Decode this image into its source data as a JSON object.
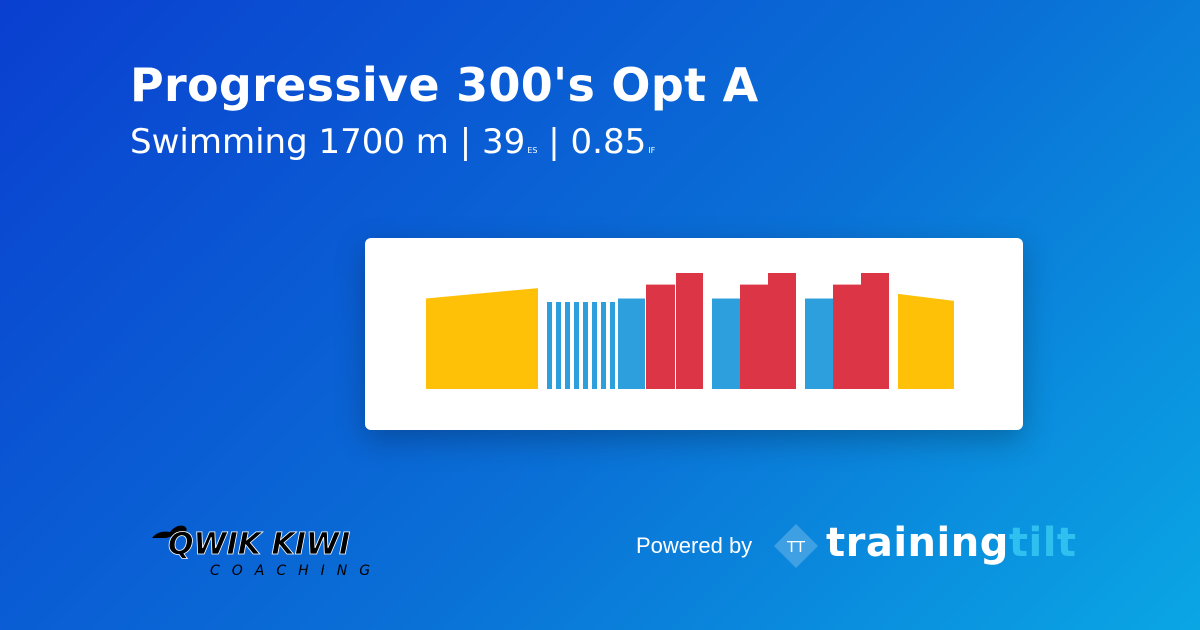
{
  "workout": {
    "title": "Progressive 300's Opt A",
    "sport": "Swimming",
    "distance": "1700 m",
    "separator": "|",
    "es_value": "39",
    "es_unit": "ES",
    "if_value": "0.85",
    "if_unit": "IF"
  },
  "colors": {
    "zone_easy": "#ffc107",
    "zone_moderate": "#2d9fdc",
    "zone_hard": "#dc3545",
    "brand_accent": "#2fc0f0"
  },
  "chart_data": {
    "type": "bar",
    "segments": [
      {
        "zone": "easy",
        "y_start": 0.78,
        "y_end": 0.87
      },
      {
        "zone": "moderate",
        "y": 0.75
      },
      {
        "zone": "moderate",
        "y": 0.75
      },
      {
        "zone": "moderate",
        "y": 0.75
      },
      {
        "zone": "moderate",
        "y": 0.75
      },
      {
        "zone": "moderate",
        "y": 0.75
      },
      {
        "zone": "moderate",
        "y": 0.75
      },
      {
        "zone": "moderate",
        "y": 0.75
      },
      {
        "zone": "moderate",
        "y": 0.75
      },
      {
        "zone": "moderate",
        "y": 0.78
      },
      {
        "zone": "hard",
        "y": 0.9
      },
      {
        "zone": "hard",
        "y": 1.0
      },
      {
        "zone": "moderate",
        "y": 0.78
      },
      {
        "zone": "hard",
        "y": 0.9
      },
      {
        "zone": "hard",
        "y": 1.0
      },
      {
        "zone": "moderate",
        "y": 0.78
      },
      {
        "zone": "hard",
        "y": 0.9
      },
      {
        "zone": "hard",
        "y": 1.0
      },
      {
        "zone": "easy",
        "y_start": 0.82,
        "y_end": 0.76
      }
    ]
  },
  "branding": {
    "coach_logo_text": "QWIK KIWI",
    "coach_logo_sub": "COACHING",
    "powered_by": "Powered by",
    "brand_mark": "TT",
    "brand_name_1": "training",
    "brand_name_2": "tilt"
  }
}
